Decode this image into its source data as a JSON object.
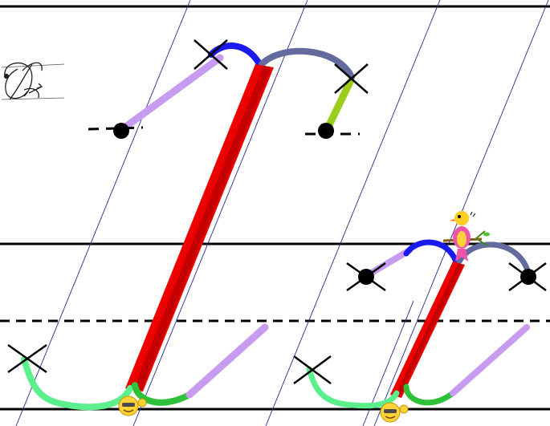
{
  "title": "",
  "description_hidden": "",
  "colors": {
    "ruling": "#000000",
    "slant": "#2b2b8f",
    "main_stroke": "#ee0000",
    "main_stroke_dark": "#b50000",
    "top_arc_left": "#1a1aee",
    "top_arc_right": "#636a9e",
    "connector_lilac": "#c79cf0",
    "tail_yellowgreen": "#9ccc1a",
    "bottom_loop_light": "#5cf08c",
    "bottom_loop_dark": "#2ec23a",
    "cross": "#000000",
    "dot": "#000000"
  },
  "icons": {
    "sample_letter": "cursive-capital-zh-sample-icon",
    "bird": "bird-icon",
    "smiley": "waving-smiley-icon"
  }
}
